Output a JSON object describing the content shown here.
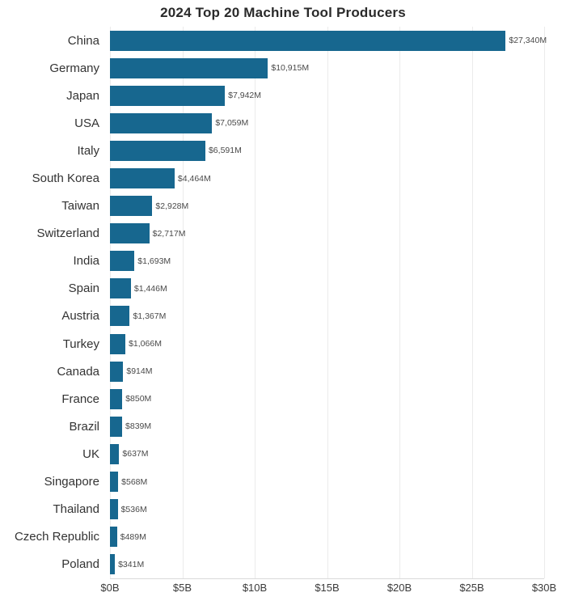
{
  "chart_data": {
    "type": "bar",
    "orientation": "horizontal",
    "title": "2024 Top 20 Machine Tool Producers",
    "categories": [
      "China",
      "Germany",
      "Japan",
      "USA",
      "Italy",
      "South Korea",
      "Taiwan",
      "Switzerland",
      "India",
      "Spain",
      "Austria",
      "Turkey",
      "Canada",
      "France",
      "Brazil",
      "UK",
      "Singapore",
      "Thailand",
      "Czech Republic",
      "Poland"
    ],
    "values_millions_usd": [
      27340,
      10915,
      7942,
      7059,
      6591,
      4464,
      2928,
      2717,
      1693,
      1446,
      1367,
      1066,
      914,
      850,
      839,
      637,
      568,
      536,
      489,
      341
    ],
    "value_labels": [
      "$27,340M",
      "$10,915M",
      "$7,942M",
      "$7,059M",
      "$6,591M",
      "$4,464M",
      "$2,928M",
      "$2,717M",
      "$1,693M",
      "$1,446M",
      "$1,367M",
      "$1,066M",
      "$914M",
      "$850M",
      "$839M",
      "$637M",
      "$568M",
      "$536M",
      "$489M",
      "$341M"
    ],
    "x_ticks": [
      "$0B",
      "$5B",
      "$10B",
      "$15B",
      "$20B",
      "$25B",
      "$30B"
    ],
    "xlim_millions_usd": [
      0,
      30000
    ],
    "grid": "vertical",
    "legend": "none",
    "bar_color": "#17678F",
    "gridline_color": "#ebebeb",
    "axis_line_color": "#d9d9d9",
    "title_color": "#2a2a2a",
    "category_label_color": "#333333",
    "value_label_color": "#4a4a4a",
    "tick_label_color": "#3b3b3b"
  }
}
